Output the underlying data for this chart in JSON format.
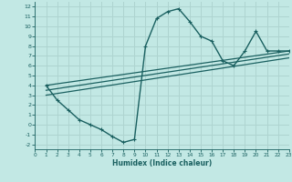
{
  "xlabel": "Humidex (Indice chaleur)",
  "bg_color": "#c2e8e4",
  "grid_color": "#aed4d0",
  "line_color": "#1a6060",
  "xlim": [
    0,
    23
  ],
  "ylim": [
    -2.5,
    12.5
  ],
  "xticks": [
    0,
    1,
    2,
    3,
    4,
    5,
    6,
    7,
    8,
    9,
    10,
    11,
    12,
    13,
    14,
    15,
    16,
    17,
    18,
    19,
    20,
    21,
    22,
    23
  ],
  "yticks": [
    -2,
    -1,
    0,
    1,
    2,
    3,
    4,
    5,
    6,
    7,
    8,
    9,
    10,
    11,
    12
  ],
  "curve1_x": [
    1,
    2,
    3,
    4,
    5,
    6,
    7,
    8,
    9,
    10,
    11,
    12,
    13,
    14,
    15,
    16,
    17,
    18,
    19,
    20,
    21,
    22,
    23
  ],
  "curve1_y": [
    4.0,
    2.5,
    1.5,
    0.5,
    0.0,
    -0.5,
    -1.2,
    -1.8,
    -1.5,
    8.0,
    10.8,
    11.5,
    11.8,
    10.5,
    9.0,
    8.5,
    6.5,
    6.0,
    7.5,
    9.5,
    7.5,
    7.5,
    7.5
  ],
  "line2_x": [
    1,
    23
  ],
  "line2_y": [
    4.0,
    7.5
  ],
  "line3_x": [
    1,
    23
  ],
  "line3_y": [
    3.5,
    7.2
  ],
  "line4_x": [
    1,
    23
  ],
  "line4_y": [
    3.0,
    6.8
  ]
}
